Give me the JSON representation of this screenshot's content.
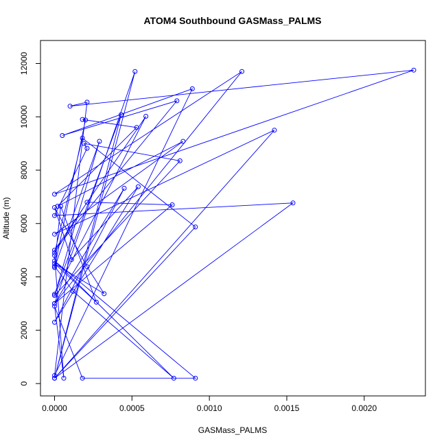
{
  "chart_data": {
    "type": "line",
    "title": "ATOM4 Southbound GASMass_PALMS",
    "xlabel": "GASMass_PALMS",
    "ylabel": "Altitude (m)",
    "xlim": [
      0,
      0.00235
    ],
    "ylim": [
      0,
      12500
    ],
    "x_ticks": [
      0,
      0.0005,
      0.001,
      0.0015,
      0.002
    ],
    "x_tick_labels": [
      "0.0000",
      "0.0005",
      "0.0010",
      "0.0015",
      "0.0020"
    ],
    "y_ticks": [
      0,
      2000,
      4000,
      6000,
      8000,
      10000,
      12000
    ],
    "y_tick_labels": [
      "0",
      "2000",
      "4000",
      "6000",
      "8000",
      "10000",
      "12000"
    ],
    "grid": false,
    "series_color": "#0000ff",
    "series": [
      {
        "x": [
          0.0,
          0.00052,
          0.0,
          0.00121,
          0.0,
          0.00232,
          0.0001,
          0.00021,
          0.0,
          0.00089,
          5e-05,
          0.00079,
          0.0,
          0.00059,
          0.0,
          0.00043,
          0.0,
          0.00142,
          0.0,
          0.00083,
          2e-05,
          0.00053,
          0.00018,
          0.0002,
          0.0,
          0.00029,
          0.0,
          0.00081,
          0.00019,
          0.00021,
          0.0,
          0.00154,
          0.0,
          0.00091,
          0.00018,
          0.0,
          0.00021,
          0.00076,
          0.0,
          0.00045,
          0.0,
          0.00054,
          0.00011,
          0.0,
          0.00021,
          0.00032,
          0.0,
          0.00027,
          4e-05,
          0.0,
          0.00012,
          0.00077,
          0.0,
          0.00091,
          0.00018,
          0.0,
          6e-05,
          0.0
        ],
        "y": [
          200,
          11700,
          3000,
          11700,
          7100,
          11750,
          10400,
          10550,
          300,
          11050,
          9300,
          10600,
          5000,
          10020,
          3350,
          10080,
          200,
          9500,
          5600,
          9080,
          6650,
          9600,
          9900,
          9880,
          4350,
          9080,
          3300,
          8350,
          9000,
          8820,
          6300,
          6770,
          200,
          5870,
          9200,
          4900,
          6800,
          6700,
          3000,
          7320,
          2300,
          7380,
          4650,
          6600,
          4380,
          3370,
          4500,
          3050,
          6650,
          4400,
          3460,
          200,
          4600,
          200,
          200,
          2900,
          200,
          4800
        ]
      }
    ]
  }
}
